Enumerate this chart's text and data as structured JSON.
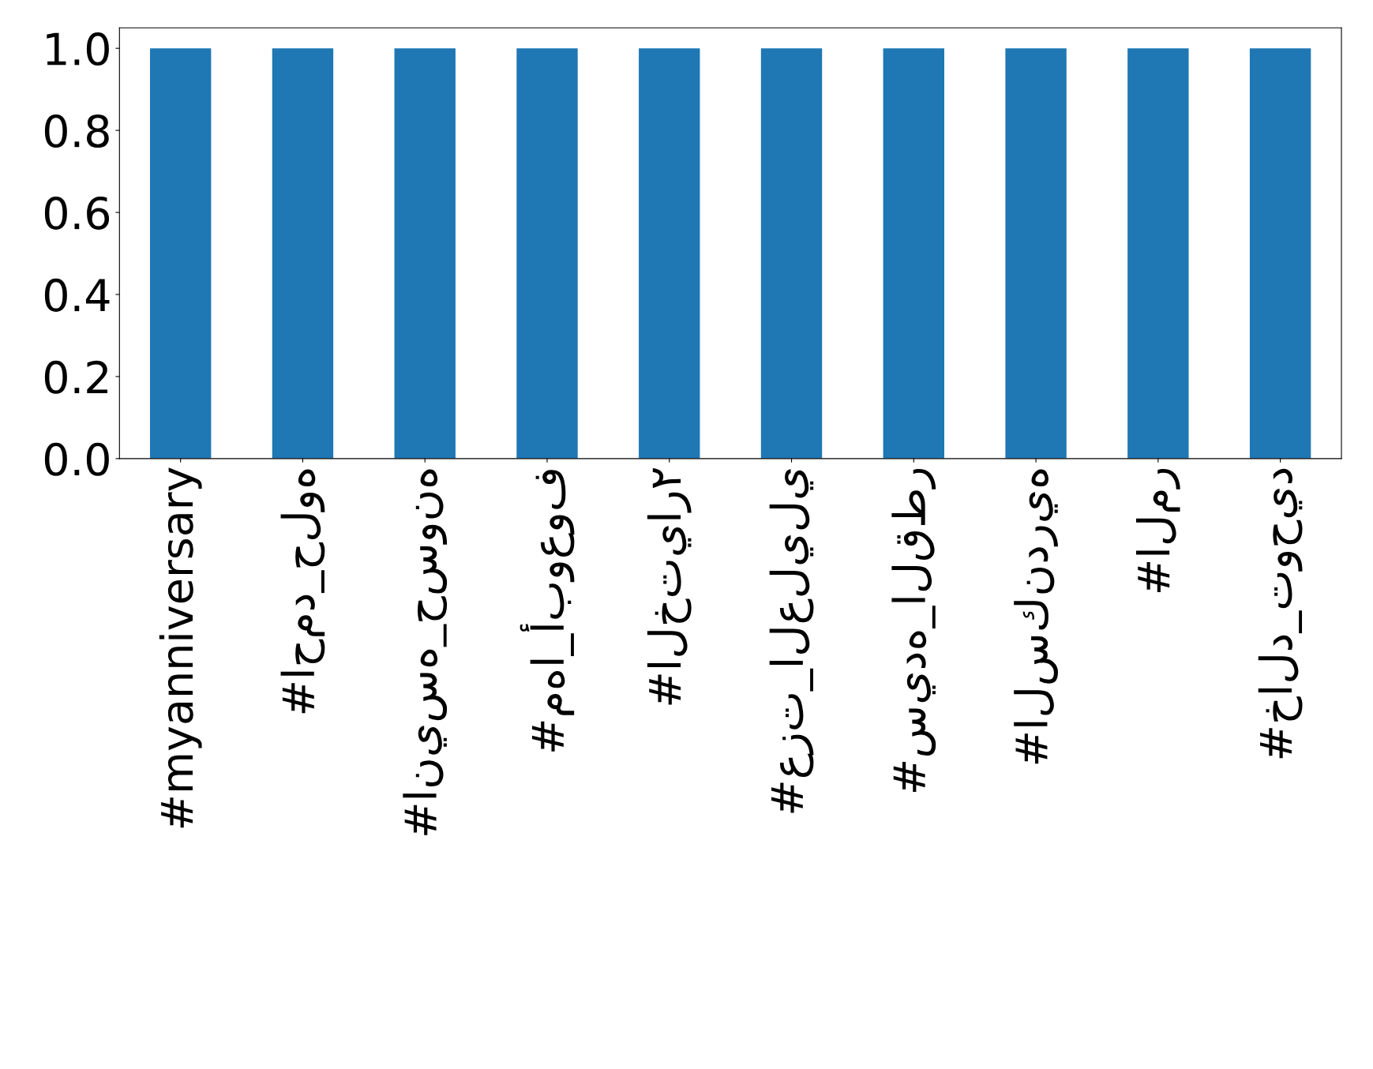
{
  "chart_data": {
    "type": "bar",
    "categories": [
      "#myanniversary",
      "#احمد_حلوه",
      "#انيسه_حسونه",
      "#مها_أبوعوف",
      "#الختيار٢",
      "#عزت_العليلي",
      "#سيده_القطر",
      "#السكندريه",
      "#المر",
      "#خالد_توحيد"
    ],
    "values": [
      1.0,
      1.0,
      1.0,
      1.0,
      1.0,
      1.0,
      1.0,
      1.0,
      1.0,
      1.0
    ],
    "color": "#1f77b4",
    "ylim": [
      0,
      1.05
    ],
    "yticks": [
      {
        "value": 0,
        "label": "0.0"
      },
      0.2,
      0.4,
      0.6,
      0.8,
      {
        "value": 1,
        "label": "1.0"
      }
    ],
    "grid": false,
    "legend": false
  }
}
